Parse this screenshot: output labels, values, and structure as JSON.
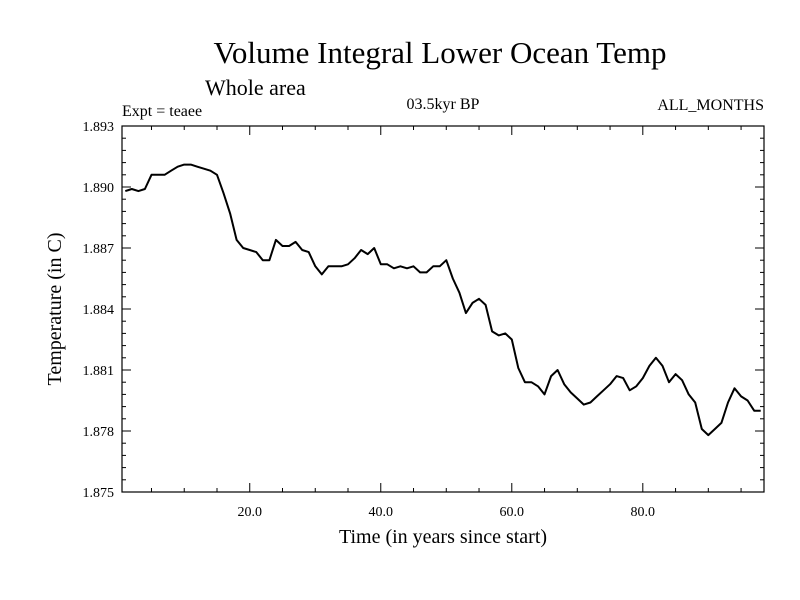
{
  "chart_data": {
    "type": "line",
    "title": "Volume Integral Lower Ocean Temp",
    "subtitle": "Whole area",
    "expt_label": "Expt = teaee",
    "period_label": "03.5kyr BP",
    "months_label": "ALL_MONTHS",
    "xlabel": "Time (in years since start)",
    "ylabel": "Temperature (in C)",
    "xlim": [
      0.5,
      98.5
    ],
    "ylim": [
      1.875,
      1.893
    ],
    "x_ticks": [
      20,
      40,
      60,
      80
    ],
    "x_tick_labels": [
      "20.0",
      "40.0",
      "60.0",
      "80.0"
    ],
    "y_ticks": [
      1.875,
      1.878,
      1.881,
      1.884,
      1.887,
      1.89,
      1.893
    ],
    "y_tick_labels": [
      "1.875",
      "1.878",
      "1.881",
      "1.884",
      "1.887",
      "1.890",
      "1.893"
    ],
    "series": [
      {
        "name": "Volume integral lower ocean temperature",
        "color": "#000000",
        "x": [
          1,
          2,
          3,
          4,
          5,
          6,
          7,
          8,
          9,
          10,
          11,
          12,
          13,
          14,
          15,
          16,
          17,
          18,
          19,
          20,
          21,
          22,
          23,
          24,
          25,
          26,
          27,
          28,
          29,
          30,
          31,
          32,
          33,
          34,
          35,
          36,
          37,
          38,
          39,
          40,
          41,
          42,
          43,
          44,
          45,
          46,
          47,
          48,
          49,
          50,
          51,
          52,
          53,
          54,
          55,
          56,
          57,
          58,
          59,
          60,
          61,
          62,
          63,
          64,
          65,
          66,
          67,
          68,
          69,
          70,
          71,
          72,
          73,
          74,
          75,
          76,
          77,
          78,
          79,
          80,
          81,
          82,
          83,
          84,
          85,
          86,
          87,
          88,
          89,
          90,
          91,
          92,
          93,
          94,
          95,
          96,
          97,
          98
        ],
        "values": [
          1.8898,
          1.8899,
          1.8898,
          1.8899,
          1.8906,
          1.8906,
          1.8906,
          1.8908,
          1.891,
          1.8911,
          1.8911,
          1.891,
          1.8909,
          1.8908,
          1.8906,
          1.8897,
          1.8887,
          1.8874,
          1.887,
          1.8869,
          1.8868,
          1.8864,
          1.8864,
          1.8874,
          1.8871,
          1.8871,
          1.8873,
          1.8869,
          1.8868,
          1.8861,
          1.8857,
          1.8861,
          1.8861,
          1.8861,
          1.8862,
          1.8865,
          1.8869,
          1.8867,
          1.887,
          1.8862,
          1.8862,
          1.886,
          1.8861,
          1.886,
          1.8861,
          1.8858,
          1.8858,
          1.8861,
          1.8861,
          1.8864,
          1.8855,
          1.8848,
          1.8838,
          1.8843,
          1.8845,
          1.8842,
          1.8829,
          1.8827,
          1.8828,
          1.8825,
          1.8811,
          1.8804,
          1.8804,
          1.8802,
          1.8798,
          1.8807,
          1.881,
          1.8803,
          1.8799,
          1.8796,
          1.8793,
          1.8794,
          1.8797,
          1.88,
          1.8803,
          1.8807,
          1.8806,
          1.88,
          1.8802,
          1.8806,
          1.8812,
          1.8816,
          1.8812,
          1.8804,
          1.8808,
          1.8805,
          1.8798,
          1.8794,
          1.8781,
          1.8778,
          1.8781,
          1.8784,
          1.8794,
          1.8801,
          1.8797,
          1.8795,
          1.879,
          1.879
        ]
      }
    ]
  }
}
